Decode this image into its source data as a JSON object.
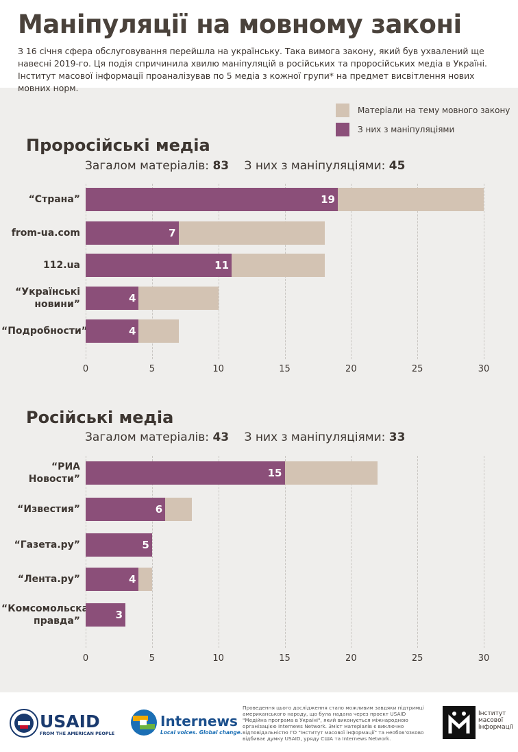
{
  "header": {
    "title": "Маніпуляції на мовному законі",
    "intro": "З 16 січня сфера обслуговування перейшла на українську. Така вимога закону, який був ухвалений ще навесні 2019-го. Ця подія спричинила хвилю маніпуляцій в російських та проросійських медіа в Україні. Інститут масової інформації проаналізував по 5 медіа з кожної групи* на предмет висвітлення нових мовних норм."
  },
  "chart_data": [
    {
      "type": "bar",
      "orientation": "horizontal",
      "title": "Проросійські медіа",
      "total_label": "Загалом матеріалів:",
      "total": 83,
      "manipulated_label": "З них з маніпуляціями:",
      "manipulated": 45,
      "categories": [
        "“Страна”",
        "from-ua.com",
        "112.ua",
        "“Українські\nновини”",
        "“Подробности”"
      ],
      "series": [
        {
          "name": "Матеріали на тему мовного закону",
          "color": "#d3c3b3",
          "values": [
            30,
            18,
            18,
            10,
            7
          ]
        },
        {
          "name": "З них з маніпуляціями",
          "color": "#8b4f79",
          "values": [
            19,
            7,
            11,
            4,
            4
          ]
        }
      ],
      "xlim": [
        0,
        30
      ],
      "xticks": [
        0,
        5,
        10,
        15,
        20,
        25,
        30
      ],
      "grid": true
    },
    {
      "type": "bar",
      "orientation": "horizontal",
      "title": "Російські медіа",
      "total_label": "Загалом матеріалів:",
      "total": 43,
      "manipulated_label": "З них з маніпуляціями:",
      "manipulated": 33,
      "categories": [
        "“РИА Новости”",
        "“Известия”",
        "“Газета.ру”",
        "“Лента.ру”",
        "“Комсомольская\nправда”"
      ],
      "series": [
        {
          "color": "#d3c3b3",
          "values": [
            22,
            8,
            5,
            5,
            3
          ]
        },
        {
          "color": "#8b4f79",
          "values": [
            15,
            6,
            5,
            4,
            3
          ]
        }
      ],
      "xlim": [
        0,
        30
      ],
      "xticks": [
        0,
        5,
        10,
        15,
        20,
        25,
        30
      ],
      "grid": true
    }
  ],
  "footer": {
    "usaid": "USAID",
    "usaid_tagline": "FROM THE AMERICAN PEOPLE",
    "internews": "Internews",
    "internews_tagline": "Local voices. Global change.",
    "disclaimer": "Проведення цього дослідження стало можливим завдяки підтримці американського народу, що була надана через проект USAID \"Медійна програма в Україні\", який виконується міжнародною організацією Internews Network. Зміст матеріалів є виключно відповідальністю ГО \"Інститут масової інформації\" та необов’язково відбиває думку USAID, уряду США та Internews Network.",
    "imi": "Інститут масової інформації"
  }
}
